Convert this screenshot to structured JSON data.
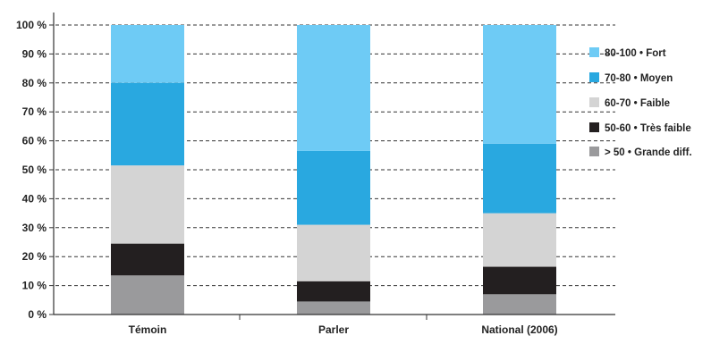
{
  "chart_data": {
    "type": "bar",
    "stacked": true,
    "categories": [
      "Témoin",
      "Parler",
      "National (2006)"
    ],
    "ylim": [
      0,
      100
    ],
    "yticks": [
      0,
      10,
      20,
      30,
      40,
      50,
      60,
      70,
      80,
      90,
      100
    ],
    "ytick_labels": [
      "0 %",
      "10 %",
      "20 %",
      "30 %",
      "40 %",
      "50 %",
      "60 %",
      "70 %",
      "80 %",
      "90 %",
      "100 %"
    ],
    "grid": "horizontal-dashed",
    "legend_position": "right",
    "series": [
      {
        "name": "> 50 • Grande diff.",
        "color": "#9a9a9c",
        "values": [
          13.5,
          4.5,
          7
        ]
      },
      {
        "name": "50-60 • Très faible",
        "color": "#231f20",
        "values": [
          11,
          7,
          9.5
        ]
      },
      {
        "name": "60-70 • Faible",
        "color": "#d4d4d4",
        "values": [
          27,
          19.5,
          18.5
        ]
      },
      {
        "name": "70-80 • Moyen",
        "color": "#29a8e0",
        "values": [
          28.5,
          25.5,
          24
        ]
      },
      {
        "name": "80-100 • Fort",
        "color": "#6ecbf5",
        "values": [
          20,
          43.5,
          41
        ]
      }
    ],
    "title": "",
    "xlabel": "",
    "ylabel": ""
  }
}
